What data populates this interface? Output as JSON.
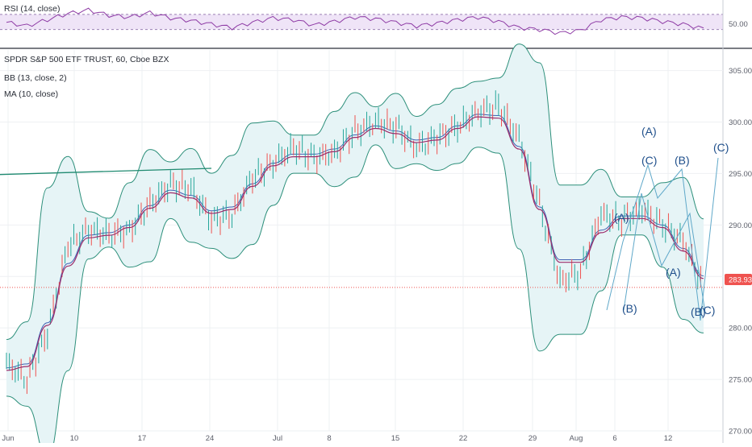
{
  "rsi_panel": {
    "legend": "RSI (14, close)",
    "level_label": "50.00",
    "colors": {
      "line": "#8e3ba5",
      "band": "#efe4f7",
      "level": "#9b7fb5"
    }
  },
  "main_panel": {
    "title": "SPDR S&P 500 ETF TRUST, 60, Cboe BZX",
    "legend_bb": "BB (13, close, 2)",
    "legend_ma": "MA (10, close)",
    "last_price": "283.93",
    "colors": {
      "bb": "#2c8f7a",
      "bb_fill": "#e6f4f6",
      "ma": "#9c2c6b",
      "basis": "#3d5fb3",
      "up": "#26a69a",
      "down": "#ef5350",
      "price_line": "#ef5350",
      "pattern": "#5fa8c9",
      "trendline": "#1f8a70"
    }
  },
  "wave_labels": [
    {
      "text": "(A)"
    },
    {
      "text": "(C)"
    },
    {
      "text": "(B)"
    },
    {
      "text": "(C)"
    },
    {
      "text": "(A)"
    },
    {
      "text": "(B)"
    },
    {
      "text": "(A)"
    },
    {
      "text": "(B)"
    },
    {
      "text": "(C)"
    }
  ],
  "chart_data": {
    "type": "line",
    "symbol": "SPDR S&P 500 ETF TRUST",
    "interval": "60",
    "exchange": "Cboe BZX",
    "x_ticks": [
      "Jun",
      "10",
      "17",
      "24",
      "Jul",
      "8",
      "15",
      "22",
      "29",
      "Aug",
      "6",
      "12"
    ],
    "y_ticks": [
      "305.00",
      "300.00",
      "295.00",
      "290.00",
      "285.00",
      "280.00",
      "275.00",
      "270.00"
    ],
    "ylim": [
      270,
      307
    ],
    "x": [
      "Jun 3",
      "Jun 5",
      "Jun 7",
      "Jun 10",
      "Jun 12",
      "Jun 14",
      "Jun 17",
      "Jun 19",
      "Jun 21",
      "Jun 24",
      "Jun 26",
      "Jun 28",
      "Jul 1",
      "Jul 3",
      "Jul 5",
      "Jul 8",
      "Jul 10",
      "Jul 12",
      "Jul 15",
      "Jul 17",
      "Jul 19",
      "Jul 22",
      "Jul 24",
      "Jul 26",
      "Jul 29",
      "Jul 31",
      "Aug 2",
      "Aug 5",
      "Aug 6",
      "Aug 8",
      "Aug 10",
      "Aug 12",
      "Aug 13",
      "Aug 14",
      "Aug 15"
    ],
    "series": [
      {
        "values": [
          276.5,
          275.0,
          279.5,
          288.0,
          289.5,
          289.0,
          289.5,
          292.0,
          294.0,
          293.5,
          290.5,
          291.0,
          294.5,
          296.0,
          297.5,
          296.5,
          297.0,
          299.0,
          300.0,
          299.5,
          297.5,
          298.5,
          299.5,
          301.0,
          301.5,
          298.5,
          292.0,
          284.5,
          285.5,
          291.0,
          290.5,
          291.5,
          290.0,
          288.5,
          283.9
        ]
      }
    ],
    "rsi": {
      "name": "RSI (14, close)",
      "level": 50,
      "values": [
        52,
        48,
        55,
        62,
        66,
        60,
        58,
        63,
        57,
        54,
        50,
        46,
        52,
        57,
        55,
        49,
        53,
        58,
        56,
        52,
        48,
        51,
        55,
        58,
        53,
        46,
        44,
        40,
        43,
        55,
        58,
        57,
        53,
        50,
        45
      ]
    }
  }
}
